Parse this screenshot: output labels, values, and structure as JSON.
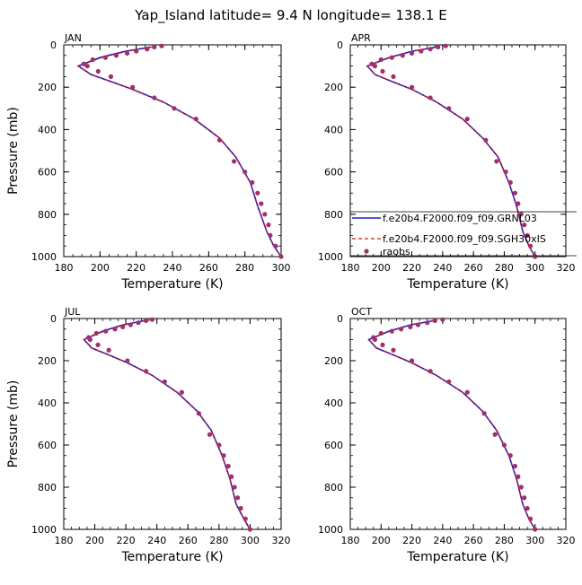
{
  "figure": {
    "title": "Yap_Island  latitude= 9.4 N longitude= 138.1 E"
  },
  "colors": {
    "model1": "#1a1acc",
    "model2": "#cc1a1a",
    "obs": "#a0306a",
    "axis": "#000000"
  },
  "legend": {
    "panel": "APR",
    "entries": [
      {
        "label": "f.e20b4.F2000.f09_f09.GRNL03",
        "style": "solid-line",
        "color": "#1a1acc"
      },
      {
        "label": "f.e20b4.F2000.f09_f09.SGH30xIS",
        "style": "dashed-line",
        "color": "#cc1a1a"
      },
      {
        "label": "raobs",
        "style": "dot",
        "color": "#a0306a"
      }
    ]
  },
  "chart_data": [
    {
      "type": "line",
      "panel_label": "JAN",
      "xlabel": "Temperature (K)",
      "ylabel": "Pressure (mb)",
      "xlim": [
        180,
        300
      ],
      "ylim": [
        1000,
        0
      ],
      "xticks": [
        180,
        200,
        220,
        240,
        260,
        280,
        300
      ],
      "yticks": [
        0,
        200,
        400,
        600,
        800,
        1000
      ],
      "series": [
        {
          "name": "f.e20b4.F2000.f09_f09.GRNL03",
          "style": "solid",
          "color": "#1a1acc",
          "x": [
            228,
            214,
            200,
            188,
            195,
            205,
            218,
            235,
            252,
            266,
            275,
            283,
            287,
            292,
            296,
            300
          ],
          "y": [
            10,
            30,
            60,
            100,
            140,
            170,
            210,
            270,
            350,
            440,
            530,
            650,
            760,
            880,
            950,
            1000
          ]
        },
        {
          "name": "f.e20b4.F2000.f09_f09.SGH30xIS",
          "style": "dashed",
          "color": "#cc1a1a",
          "x": [
            229,
            215,
            201,
            188,
            195,
            205,
            218,
            235,
            252,
            266,
            275,
            283,
            287,
            292,
            296,
            300
          ],
          "y": [
            10,
            30,
            60,
            100,
            140,
            170,
            210,
            270,
            350,
            440,
            530,
            650,
            760,
            880,
            950,
            1000
          ]
        },
        {
          "name": "raobs",
          "style": "dots",
          "color": "#a0306a",
          "x": [
            234,
            230,
            226,
            220,
            215,
            209,
            203,
            196,
            191,
            193,
            199,
            206,
            218,
            230,
            241,
            253,
            266,
            274,
            280,
            284,
            287,
            289,
            291,
            293,
            294,
            297,
            300
          ],
          "y": [
            5,
            10,
            20,
            30,
            40,
            50,
            60,
            70,
            90,
            100,
            125,
            150,
            200,
            250,
            300,
            350,
            450,
            550,
            600,
            650,
            700,
            750,
            800,
            850,
            900,
            950,
            1000
          ]
        }
      ]
    },
    {
      "type": "line",
      "panel_label": "APR",
      "xlabel": "Temperature (K)",
      "ylabel": "",
      "xlim": [
        180,
        320
      ],
      "ylim": [
        1000,
        0
      ],
      "xticks": [
        180,
        200,
        220,
        240,
        260,
        280,
        300,
        320
      ],
      "yticks": [
        0,
        200,
        400,
        600,
        800,
        1000
      ],
      "series": [
        {
          "name": "f.e20b4.F2000.f09_f09.GRNL03",
          "style": "solid",
          "color": "#1a1acc",
          "x": [
            236,
            220,
            205,
            191,
            196,
            206,
            220,
            236,
            253,
            266,
            276,
            283,
            288,
            292,
            296,
            300
          ],
          "y": [
            10,
            30,
            60,
            100,
            140,
            170,
            210,
            270,
            350,
            440,
            530,
            650,
            760,
            880,
            950,
            1000
          ]
        },
        {
          "name": "f.e20b4.F2000.f09_f09.SGH30xIS",
          "style": "dashed",
          "color": "#cc1a1a",
          "x": [
            237,
            221,
            206,
            191,
            196,
            206,
            220,
            236,
            253,
            266,
            276,
            283,
            288,
            292,
            296,
            300
          ],
          "y": [
            10,
            30,
            60,
            100,
            140,
            170,
            210,
            270,
            350,
            440,
            530,
            650,
            760,
            880,
            950,
            1000
          ]
        },
        {
          "name": "raobs",
          "style": "dots",
          "color": "#a0306a",
          "x": [
            242,
            237,
            232,
            226,
            220,
            214,
            207,
            200,
            194,
            196,
            201,
            208,
            220,
            232,
            244,
            256,
            268,
            275,
            281,
            284,
            287,
            289,
            291,
            293,
            295,
            297,
            300
          ],
          "y": [
            5,
            10,
            20,
            30,
            40,
            50,
            60,
            70,
            90,
            100,
            125,
            150,
            200,
            250,
            300,
            350,
            450,
            550,
            600,
            650,
            700,
            750,
            800,
            850,
            900,
            950,
            1000
          ]
        }
      ]
    },
    {
      "type": "line",
      "panel_label": "JUL",
      "xlabel": "Temperature (K)",
      "ylabel": "Pressure (mb)",
      "xlim": [
        180,
        320
      ],
      "ylim": [
        1000,
        0
      ],
      "xticks": [
        180,
        200,
        220,
        240,
        260,
        280,
        300,
        320
      ],
      "yticks": [
        0,
        200,
        400,
        600,
        800,
        1000
      ],
      "series": [
        {
          "name": "f.e20b4.F2000.f09_f09.GRNL03",
          "style": "solid",
          "color": "#1a1acc",
          "x": [
            232,
            218,
            205,
            193,
            198,
            208,
            221,
            237,
            253,
            266,
            275,
            282,
            287,
            291,
            296,
            300
          ],
          "y": [
            10,
            30,
            60,
            100,
            140,
            170,
            210,
            270,
            350,
            440,
            530,
            650,
            760,
            880,
            950,
            1000
          ]
        },
        {
          "name": "f.e20b4.F2000.f09_f09.SGH30xIS",
          "style": "dashed",
          "color": "#cc1a1a",
          "x": [
            233,
            219,
            206,
            193,
            198,
            208,
            221,
            237,
            253,
            266,
            275,
            282,
            287,
            291,
            296,
            300
          ],
          "y": [
            10,
            30,
            60,
            100,
            140,
            170,
            210,
            270,
            350,
            440,
            530,
            650,
            760,
            880,
            950,
            1000
          ]
        },
        {
          "name": "raobs",
          "style": "dots",
          "color": "#a0306a",
          "x": [
            237,
            233,
            228,
            223,
            218,
            213,
            207,
            201,
            196,
            197,
            202,
            209,
            221,
            233,
            245,
            256,
            267,
            274,
            280,
            283,
            286,
            288,
            290,
            292,
            294,
            297,
            300
          ],
          "y": [
            5,
            10,
            20,
            30,
            40,
            50,
            60,
            70,
            90,
            100,
            125,
            150,
            200,
            250,
            300,
            350,
            450,
            550,
            600,
            650,
            700,
            750,
            800,
            850,
            900,
            950,
            1000
          ]
        }
      ]
    },
    {
      "type": "line",
      "panel_label": "OCT",
      "xlabel": "Temperature (K)",
      "ylabel": "",
      "xlim": [
        180,
        320
      ],
      "ylim": [
        1000,
        0
      ],
      "xticks": [
        180,
        200,
        220,
        240,
        260,
        280,
        300,
        320
      ],
      "yticks": [
        0,
        200,
        400,
        600,
        800,
        1000
      ],
      "series": [
        {
          "name": "f.e20b4.F2000.f09_f09.GRNL03",
          "style": "solid",
          "color": "#1a1acc",
          "x": [
            234,
            219,
            205,
            192,
            197,
            207,
            220,
            236,
            253,
            266,
            275,
            283,
            288,
            292,
            296,
            300
          ],
          "y": [
            10,
            30,
            60,
            100,
            140,
            170,
            210,
            270,
            350,
            440,
            530,
            650,
            760,
            880,
            950,
            1000
          ]
        },
        {
          "name": "f.e20b4.F2000.f09_f09.SGH30xIS",
          "style": "dashed",
          "color": "#cc1a1a",
          "x": [
            235,
            220,
            206,
            192,
            197,
            207,
            220,
            236,
            253,
            266,
            275,
            283,
            288,
            292,
            296,
            300
          ],
          "y": [
            10,
            30,
            60,
            100,
            140,
            170,
            210,
            270,
            350,
            440,
            530,
            650,
            760,
            880,
            950,
            1000
          ]
        },
        {
          "name": "raobs",
          "style": "dots",
          "color": "#a0306a",
          "x": [
            240,
            235,
            230,
            224,
            219,
            213,
            207,
            200,
            195,
            196,
            201,
            208,
            220,
            232,
            244,
            256,
            267,
            274,
            280,
            284,
            287,
            289,
            291,
            293,
            295,
            297,
            300
          ],
          "y": [
            5,
            10,
            20,
            30,
            40,
            50,
            60,
            70,
            90,
            100,
            125,
            150,
            200,
            250,
            300,
            350,
            450,
            550,
            600,
            650,
            700,
            750,
            800,
            850,
            900,
            950,
            1000
          ]
        }
      ]
    }
  ]
}
